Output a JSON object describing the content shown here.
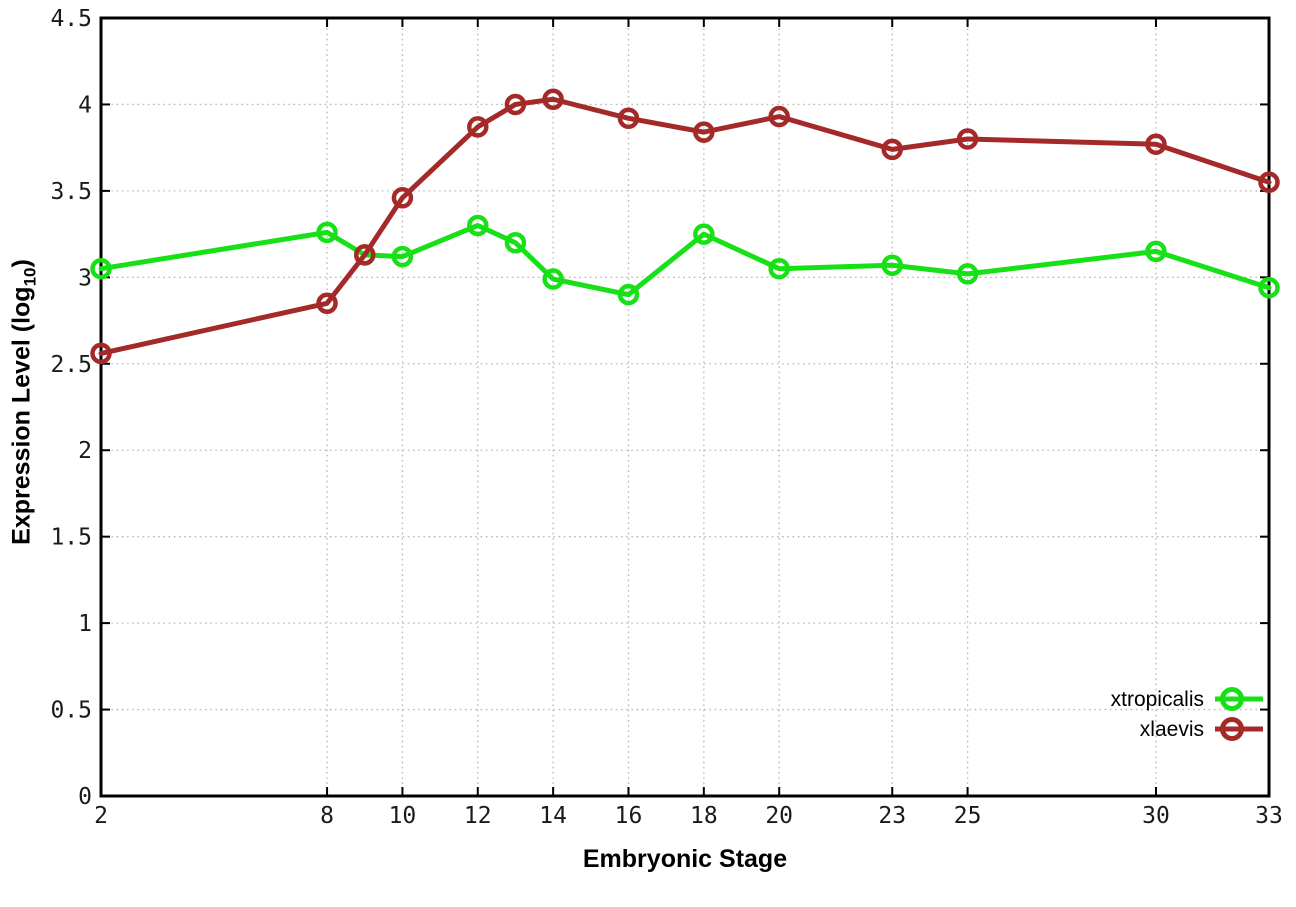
{
  "figure": {
    "background": "#ffffff",
    "border_color": "#000000",
    "grid_color": "#b9b9b9",
    "tick_label_color": "#1a1a1a"
  },
  "y_axis_title": {
    "main": "Expression Level (log",
    "sub": "10",
    "close": ")"
  },
  "x_axis_title": "Embryonic Stage",
  "chart_data": {
    "type": "line",
    "xlabel": "Embryonic Stage",
    "ylabel": "Expression Level (log10)",
    "xlim": [
      2,
      33
    ],
    "ylim": [
      0,
      4.5
    ],
    "x_ticks": [
      2,
      8,
      10,
      12,
      14,
      16,
      18,
      20,
      23,
      25,
      30,
      33
    ],
    "y_ticks": [
      0,
      0.5,
      1,
      1.5,
      2,
      2.5,
      3,
      3.5,
      4,
      4.5
    ],
    "grid": true,
    "grid_style": "dotted",
    "legend_position": "bottom-right",
    "marker": "open-circle",
    "x": [
      2,
      8,
      9,
      10,
      12,
      13,
      14,
      16,
      18,
      20,
      23,
      25,
      30,
      33
    ],
    "series": [
      {
        "name": "xtropicalis",
        "color": "#17e017",
        "values": [
          3.05,
          3.26,
          3.13,
          3.12,
          3.3,
          3.2,
          2.99,
          2.9,
          3.25,
          3.05,
          3.07,
          3.02,
          3.15,
          2.94
        ]
      },
      {
        "name": "xlaevis",
        "color": "#a42a2a",
        "values": [
          2.56,
          2.85,
          3.13,
          3.46,
          3.87,
          4.0,
          4.03,
          3.92,
          3.84,
          3.93,
          3.74,
          3.8,
          3.77,
          3.55
        ]
      }
    ]
  }
}
